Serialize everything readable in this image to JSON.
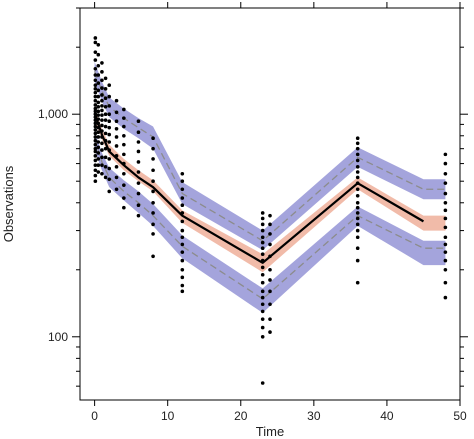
{
  "chart_data": {
    "type": "scatter",
    "title": "",
    "xlabel": "Time",
    "ylabel": "Observations",
    "x_scale": "linear",
    "y_scale": "log",
    "xlim": [
      -2,
      50
    ],
    "ylim": [
      52,
      3000
    ],
    "x_ticks": [
      0,
      10,
      20,
      30,
      40,
      50
    ],
    "x_tick_labels": [
      "0",
      "10",
      "20",
      "30",
      "40",
      "50"
    ],
    "y_ticks": [
      100,
      1000
    ],
    "y_tick_labels": [
      "100",
      "1,000"
    ],
    "grid": false,
    "colors": {
      "median_band": "#f0b4a0",
      "percentile_band": "#9a9ad8",
      "median_line": "#000000",
      "percentile_line": "#8c8c8c",
      "points": "#000000"
    },
    "bins_x": [
      0,
      1,
      2,
      4,
      6,
      8,
      12,
      23,
      36,
      45,
      48
    ],
    "observed_median": [
      1010,
      810,
      680,
      590,
      520,
      470,
      350,
      215,
      490,
      330,
      null
    ],
    "observed_p5": [
      780,
      610,
      520,
      450,
      400,
      350,
      255,
      148,
      350,
      250,
      250
    ],
    "observed_p95": [
      1560,
      1270,
      1080,
      960,
      870,
      790,
      440,
      270,
      640,
      460,
      460
    ],
    "sim_median_band": [
      [
        930,
        1080
      ],
      [
        770,
        860
      ],
      [
        650,
        730
      ],
      [
        560,
        630
      ],
      [
        500,
        560
      ],
      [
        450,
        505
      ],
      [
        325,
        370
      ],
      [
        195,
        235
      ],
      [
        460,
        520
      ],
      [
        300,
        350
      ],
      [
        300,
        350
      ]
    ],
    "sim_p5_band": [
      [
        690,
        840
      ],
      [
        560,
        670
      ],
      [
        470,
        575
      ],
      [
        410,
        505
      ],
      [
        360,
        450
      ],
      [
        315,
        395
      ],
      [
        225,
        285
      ],
      [
        128,
        165
      ],
      [
        315,
        385
      ],
      [
        210,
        270
      ],
      [
        210,
        270
      ]
    ],
    "sim_p95_band": [
      [
        1400,
        1720
      ],
      [
        1140,
        1400
      ],
      [
        970,
        1190
      ],
      [
        860,
        1060
      ],
      [
        780,
        960
      ],
      [
        700,
        880
      ],
      [
        395,
        495
      ],
      [
        245,
        300
      ],
      [
        580,
        710
      ],
      [
        415,
        510
      ],
      [
        415,
        510
      ]
    ],
    "observations": [
      {
        "x": 0.1,
        "values": [
          2200,
          2100,
          1900,
          1750,
          1600,
          1500,
          1420,
          1350,
          1300,
          1250,
          1200,
          1150,
          1100,
          1060,
          1030,
          1000,
          970,
          940,
          910,
          880,
          850,
          820,
          790,
          760,
          730,
          700,
          680,
          650,
          620,
          590,
          560,
          530,
          500
        ]
      },
      {
        "x": 0.5,
        "values": [
          2050,
          1850,
          1650,
          1500,
          1380,
          1280,
          1200,
          1130,
          1080,
          1030,
          990,
          950,
          910,
          870,
          830,
          790,
          750,
          710,
          670,
          630,
          590,
          550
        ]
      },
      {
        "x": 1.0,
        "values": [
          1700,
          1550,
          1420,
          1310,
          1220,
          1150,
          1090,
          1040,
          990,
          940,
          890,
          840,
          790,
          740,
          690,
          640,
          590,
          540
        ]
      },
      {
        "x": 1.5,
        "values": [
          1450,
          1300,
          1180,
          1080,
          1000,
          940,
          880,
          820,
          760,
          700,
          640,
          580,
          520
        ]
      },
      {
        "x": 2.0,
        "values": [
          1350,
          1200,
          1090,
          1000,
          930,
          870,
          810,
          750,
          690,
          630,
          570,
          510,
          450
        ]
      },
      {
        "x": 3.0,
        "values": [
          1150,
          1020,
          930,
          860,
          790,
          720,
          650,
          580,
          520,
          460
        ]
      },
      {
        "x": 4.0,
        "values": [
          1050,
          960,
          880,
          800,
          730,
          660,
          600,
          540,
          480,
          420,
          380
        ]
      },
      {
        "x": 6.0,
        "values": [
          930,
          830,
          750,
          680,
          610,
          550,
          490,
          440,
          390,
          350
        ]
      },
      {
        "x": 8.0,
        "values": [
          780,
          700,
          630,
          560,
          500,
          450,
          400,
          360,
          320,
          290,
          230
        ]
      },
      {
        "x": 12.0,
        "values": [
          540,
          500,
          460,
          420,
          390,
          360,
          330,
          300,
          280,
          260,
          240,
          220,
          200,
          185,
          170,
          160
        ]
      },
      {
        "x": 23.0,
        "values": [
          360,
          340,
          320,
          300,
          280,
          265,
          250,
          235,
          220,
          205,
          190,
          175,
          160,
          150,
          140,
          130,
          120,
          110,
          100,
          62
        ]
      },
      {
        "x": 24.0,
        "values": [
          350,
          320,
          290,
          260,
          230,
          200,
          180,
          160,
          140,
          120,
          105
        ]
      },
      {
        "x": 36.0,
        "values": [
          780,
          740,
          700,
          660,
          620,
          580,
          550,
          520,
          490,
          460,
          430,
          400,
          380,
          360,
          340,
          320,
          300,
          280,
          250,
          220,
          175
        ]
      },
      {
        "x": 48.0,
        "values": [
          660,
          600,
          540,
          490,
          440,
          400,
          370,
          340,
          310,
          280,
          260,
          240,
          220,
          200,
          175,
          150
        ]
      }
    ]
  }
}
